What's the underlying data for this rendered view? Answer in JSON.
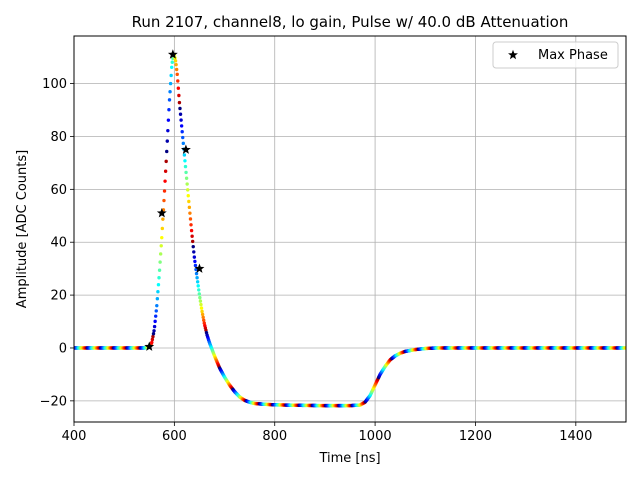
{
  "chart_data": {
    "type": "scatter",
    "title": "Run 2107, channel8, lo gain, Pulse w/ 40.0 dB Attenuation",
    "xlabel": "Time [ns]",
    "ylabel": "Amplitude [ADC Counts]",
    "xlim": [
      400,
      1500
    ],
    "ylim": [
      -28,
      118
    ],
    "xticks": [
      400,
      600,
      800,
      1000,
      1200,
      1400
    ],
    "yticks": [
      -20,
      0,
      20,
      40,
      60,
      80,
      100
    ],
    "grid": true,
    "legend": {
      "placement": "top-right",
      "entries": [
        "Max Phase"
      ]
    },
    "colormap": "jet",
    "series": [
      {
        "type": "line-scatter",
        "x": [
          400,
          450,
          500,
          540,
          550,
          555,
          560,
          565,
          570,
          575,
          580,
          585,
          590,
          595,
          598,
          600,
          603,
          606,
          610,
          615,
          620,
          625,
          630,
          635,
          640,
          645,
          650,
          655,
          660,
          665,
          670,
          680,
          690,
          700,
          710,
          720,
          730,
          740,
          750,
          760,
          780,
          800,
          850,
          900,
          950,
          970,
          980,
          990,
          1000,
          1010,
          1020,
          1030,
          1040,
          1050,
          1060,
          1080,
          1100,
          1120,
          1150,
          1200,
          1250,
          1300,
          1350,
          1400,
          1450,
          1500
        ],
        "y": [
          0,
          0,
          0,
          0,
          0.3,
          2,
          7,
          16,
          28,
          42,
          58,
          75,
          93,
          107,
          111,
          111,
          108,
          103,
          93,
          83,
          73,
          63,
          53,
          43,
          34,
          27,
          20,
          14,
          9,
          5,
          2,
          -3,
          -7.5,
          -11,
          -14,
          -16.5,
          -18.5,
          -19.8,
          -20.5,
          -21,
          -21.3,
          -21.5,
          -21.7,
          -21.8,
          -21.8,
          -21.6,
          -20.5,
          -18,
          -14,
          -10,
          -7,
          -4.5,
          -3,
          -2,
          -1.3,
          -0.6,
          -0.2,
          0,
          0,
          0,
          0,
          0,
          0,
          0,
          0,
          0
        ]
      },
      {
        "name": "Max Phase",
        "type": "marker",
        "marker": "star",
        "color": "#000000",
        "x": [
          550,
          575,
          597,
          623,
          650
        ],
        "y": [
          0.5,
          51,
          111,
          75,
          30
        ]
      }
    ]
  }
}
